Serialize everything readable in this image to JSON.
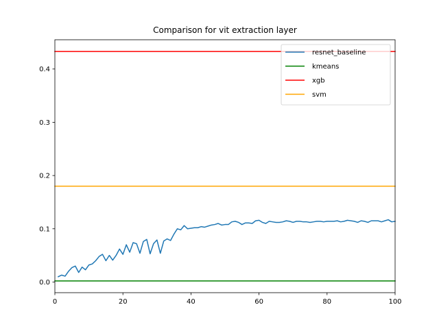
{
  "chart_data": {
    "type": "line",
    "title": "Comparison for vit extraction layer",
    "xlabel": "",
    "ylabel": "",
    "xlim": [
      0,
      100
    ],
    "ylim": [
      -0.02,
      0.455
    ],
    "xticks": [
      0,
      20,
      40,
      60,
      80,
      100
    ],
    "xtick_labels": [
      "0",
      "20",
      "40",
      "60",
      "80",
      "100"
    ],
    "yticks": [
      0.0,
      0.1,
      0.2,
      0.3,
      0.4
    ],
    "ytick_labels": [
      "0.0",
      "0.1",
      "0.2",
      "0.3",
      "0.4"
    ],
    "grid": false,
    "legend_position": "top-right",
    "series": [
      {
        "name": "resnet_baseline",
        "color": "#1f77b4",
        "x": [
          1,
          2,
          3,
          4,
          5,
          6,
          7,
          8,
          9,
          10,
          11,
          12,
          13,
          14,
          15,
          16,
          17,
          18,
          19,
          20,
          21,
          22,
          23,
          24,
          25,
          26,
          27,
          28,
          29,
          30,
          31,
          32,
          33,
          34,
          35,
          36,
          37,
          38,
          39,
          40,
          41,
          42,
          43,
          44,
          45,
          46,
          47,
          48,
          49,
          50,
          51,
          52,
          53,
          54,
          55,
          56,
          57,
          58,
          59,
          60,
          61,
          62,
          63,
          64,
          65,
          66,
          67,
          68,
          69,
          70,
          71,
          72,
          73,
          74,
          75,
          76,
          77,
          78,
          79,
          80,
          81,
          82,
          83,
          84,
          85,
          86,
          87,
          88,
          89,
          90,
          91,
          92,
          93,
          94,
          95,
          96,
          97,
          98,
          99,
          100
        ],
        "values": [
          0.01,
          0.013,
          0.011,
          0.02,
          0.027,
          0.03,
          0.018,
          0.028,
          0.023,
          0.032,
          0.034,
          0.04,
          0.048,
          0.052,
          0.04,
          0.05,
          0.041,
          0.05,
          0.062,
          0.052,
          0.07,
          0.056,
          0.074,
          0.072,
          0.054,
          0.076,
          0.08,
          0.053,
          0.072,
          0.079,
          0.054,
          0.077,
          0.081,
          0.078,
          0.09,
          0.1,
          0.098,
          0.106,
          0.1,
          0.101,
          0.102,
          0.102,
          0.104,
          0.103,
          0.105,
          0.107,
          0.108,
          0.11,
          0.107,
          0.108,
          0.108,
          0.113,
          0.114,
          0.112,
          0.108,
          0.111,
          0.111,
          0.11,
          0.115,
          0.116,
          0.112,
          0.11,
          0.114,
          0.113,
          0.112,
          0.112,
          0.113,
          0.115,
          0.114,
          0.112,
          0.114,
          0.114,
          0.113,
          0.113,
          0.112,
          0.113,
          0.114,
          0.114,
          0.113,
          0.114,
          0.114,
          0.114,
          0.115,
          0.113,
          0.114,
          0.116,
          0.115,
          0.114,
          0.112,
          0.115,
          0.114,
          0.112,
          0.115,
          0.115,
          0.115,
          0.113,
          0.115,
          0.117,
          0.113,
          0.114
        ]
      },
      {
        "name": "kmeans",
        "color": "#008000",
        "x": [
          0,
          100
        ],
        "values": [
          0.002,
          0.002
        ]
      },
      {
        "name": "xgb",
        "color": "#ff0000",
        "x": [
          0,
          100
        ],
        "values": [
          0.433,
          0.433
        ]
      },
      {
        "name": "svm",
        "color": "#ffa500",
        "x": [
          0,
          100
        ],
        "values": [
          0.18,
          0.18
        ]
      }
    ]
  }
}
